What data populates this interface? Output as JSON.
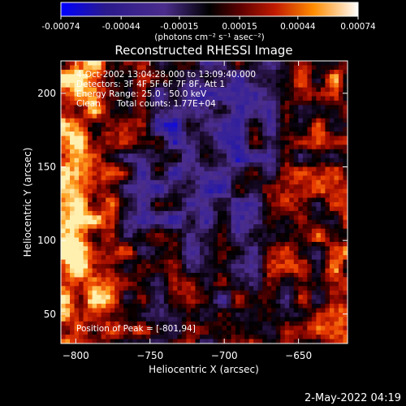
{
  "chart_data": {
    "type": "heatmap",
    "title": "Reconstructed RHESSI Image",
    "xlabel": "Heliocentric X (arcsec)",
    "ylabel": "Heliocentric Y (arcsec)",
    "xlim": [
      -810,
      -617
    ],
    "ylim": [
      30,
      222
    ],
    "x_ticks": [
      -800,
      -750,
      -700,
      -650
    ],
    "y_ticks": [
      50,
      100,
      150,
      200
    ],
    "colorbar": {
      "range": [
        -0.00074,
        0.00074
      ],
      "tick_values": [
        -0.00074,
        -0.00044,
        -0.00015,
        0.00015,
        0.00044,
        0.00074
      ],
      "tick_labels": [
        "-0.00074",
        "-0.00044",
        "-0.00015",
        "0.00015",
        "0.00044",
        "0.00074"
      ],
      "unit_label": "(photons cm⁻² s⁻¹ asec⁻²)"
    },
    "annotations": {
      "time": "4-Oct-2002 13:04:28.000 to 13:09:40.000",
      "detectors": "Detectors: 3F 4F 5F 6F 7F 8F, Att 1",
      "energy": "Energy Range: 25.0 - 50.0 keV",
      "method": "Clean      Total counts: 1.77E+04",
      "peak": "Position of Peak = [-801,94]"
    },
    "peak_position": [
      -801,
      94
    ],
    "total_counts": 17700,
    "colormap": [
      "#0000ff",
      "#2a1a8c",
      "#4b2d8c",
      "#000000",
      "#3a0000",
      "#8b0000",
      "#e03000",
      "#ff8c00",
      "#ffd24a",
      "#ffffff"
    ]
  },
  "footer": {
    "timestamp": "2-May-2022 04:19"
  }
}
